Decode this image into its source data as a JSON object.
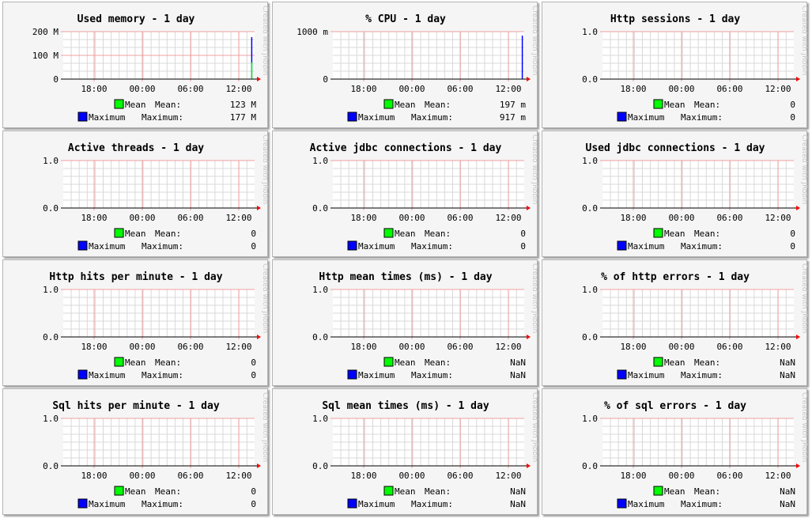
{
  "chart_data": [
    {
      "type": "line",
      "title": "Used memory - 1 day",
      "y_ticks": [
        "200 M",
        "100 M",
        "0"
      ],
      "ylim": [
        0,
        200
      ],
      "x_ticks": [
        "18:00",
        "00:00",
        "06:00",
        "12:00"
      ],
      "series": [
        {
          "name": "Mean",
          "color": "#00ff00",
          "label": "Mean:",
          "value_text": "123 M",
          "spike": {
            "x_fraction": 0.985,
            "value": 70
          }
        },
        {
          "name": "Maximum",
          "color": "#0000ff",
          "label": "Maximum:",
          "value_text": "177 M",
          "spike": {
            "x_fraction": 0.985,
            "value": 177
          }
        }
      ]
    },
    {
      "type": "line",
      "title": "% CPU - 1 day",
      "y_ticks": [
        "1000 m",
        "0"
      ],
      "ylim": [
        0,
        1000
      ],
      "x_ticks": [
        "18:00",
        "00:00",
        "06:00",
        "12:00"
      ],
      "series": [
        {
          "name": "Mean",
          "color": "#00ff00",
          "label": "Mean:",
          "value_text": "197 m",
          "spike": {
            "x_fraction": 0.99,
            "value": 10
          }
        },
        {
          "name": "Maximum",
          "color": "#0000ff",
          "label": "Maximum:",
          "value_text": "917 m",
          "spike": {
            "x_fraction": 0.99,
            "value": 917
          }
        }
      ]
    },
    {
      "type": "line",
      "title": "Http sessions - 1 day",
      "y_ticks": [
        "1.0",
        "0.0"
      ],
      "ylim": [
        0,
        1
      ],
      "x_ticks": [
        "18:00",
        "00:00",
        "06:00",
        "12:00"
      ],
      "series": [
        {
          "name": "Mean",
          "color": "#00ff00",
          "label": "Mean:",
          "value_text": "0"
        },
        {
          "name": "Maximum",
          "color": "#0000ff",
          "label": "Maximum:",
          "value_text": "0"
        }
      ]
    },
    {
      "type": "line",
      "title": "Active threads - 1 day",
      "y_ticks": [
        "1.0",
        "0.0"
      ],
      "ylim": [
        0,
        1
      ],
      "x_ticks": [
        "18:00",
        "00:00",
        "06:00",
        "12:00"
      ],
      "series": [
        {
          "name": "Mean",
          "color": "#00ff00",
          "label": "Mean:",
          "value_text": "0"
        },
        {
          "name": "Maximum",
          "color": "#0000ff",
          "label": "Maximum:",
          "value_text": "0"
        }
      ]
    },
    {
      "type": "line",
      "title": "Active jdbc connections - 1 day",
      "y_ticks": [
        "1.0",
        "0.0"
      ],
      "ylim": [
        0,
        1
      ],
      "x_ticks": [
        "18:00",
        "00:00",
        "06:00",
        "12:00"
      ],
      "series": [
        {
          "name": "Mean",
          "color": "#00ff00",
          "label": "Mean:",
          "value_text": "0"
        },
        {
          "name": "Maximum",
          "color": "#0000ff",
          "label": "Maximum:",
          "value_text": "0"
        }
      ]
    },
    {
      "type": "line",
      "title": "Used jdbc connections - 1 day",
      "y_ticks": [
        "1.0",
        "0.0"
      ],
      "ylim": [
        0,
        1
      ],
      "x_ticks": [
        "18:00",
        "00:00",
        "06:00",
        "12:00"
      ],
      "series": [
        {
          "name": "Mean",
          "color": "#00ff00",
          "label": "Mean:",
          "value_text": "0"
        },
        {
          "name": "Maximum",
          "color": "#0000ff",
          "label": "Maximum:",
          "value_text": "0"
        }
      ]
    },
    {
      "type": "line",
      "title": "Http hits per minute - 1 day",
      "y_ticks": [
        "1.0",
        "0.0"
      ],
      "ylim": [
        0,
        1
      ],
      "x_ticks": [
        "18:00",
        "00:00",
        "06:00",
        "12:00"
      ],
      "series": [
        {
          "name": "Mean",
          "color": "#00ff00",
          "label": "Mean:",
          "value_text": "0"
        },
        {
          "name": "Maximum",
          "color": "#0000ff",
          "label": "Maximum:",
          "value_text": "0"
        }
      ]
    },
    {
      "type": "line",
      "title": "Http mean times (ms) - 1 day",
      "y_ticks": [
        "1.0",
        "0.0"
      ],
      "ylim": [
        0,
        1
      ],
      "x_ticks": [
        "18:00",
        "00:00",
        "06:00",
        "12:00"
      ],
      "series": [
        {
          "name": "Mean",
          "color": "#00ff00",
          "label": "Mean:",
          "value_text": "NaN"
        },
        {
          "name": "Maximum",
          "color": "#0000ff",
          "label": "Maximum:",
          "value_text": "NaN"
        }
      ]
    },
    {
      "type": "line",
      "title": "% of http errors - 1 day",
      "y_ticks": [
        "1.0",
        "0.0"
      ],
      "ylim": [
        0,
        1
      ],
      "x_ticks": [
        "18:00",
        "00:00",
        "06:00",
        "12:00"
      ],
      "series": [
        {
          "name": "Mean",
          "color": "#00ff00",
          "label": "Mean:",
          "value_text": "NaN"
        },
        {
          "name": "Maximum",
          "color": "#0000ff",
          "label": "Maximum:",
          "value_text": "NaN"
        }
      ]
    },
    {
      "type": "line",
      "title": "Sql hits per minute - 1 day",
      "y_ticks": [
        "1.0",
        "0.0"
      ],
      "ylim": [
        0,
        1
      ],
      "x_ticks": [
        "18:00",
        "00:00",
        "06:00",
        "12:00"
      ],
      "series": [
        {
          "name": "Mean",
          "color": "#00ff00",
          "label": "Mean:",
          "value_text": "0"
        },
        {
          "name": "Maximum",
          "color": "#0000ff",
          "label": "Maximum:",
          "value_text": "0"
        }
      ]
    },
    {
      "type": "line",
      "title": "Sql mean times (ms) - 1 day",
      "y_ticks": [
        "1.0",
        "0.0"
      ],
      "ylim": [
        0,
        1
      ],
      "x_ticks": [
        "18:00",
        "00:00",
        "06:00",
        "12:00"
      ],
      "series": [
        {
          "name": "Mean",
          "color": "#00ff00",
          "label": "Mean:",
          "value_text": "NaN"
        },
        {
          "name": "Maximum",
          "color": "#0000ff",
          "label": "Maximum:",
          "value_text": "NaN"
        }
      ]
    },
    {
      "type": "line",
      "title": "% of sql errors - 1 day",
      "y_ticks": [
        "1.0",
        "0.0"
      ],
      "ylim": [
        0,
        1
      ],
      "x_ticks": [
        "18:00",
        "00:00",
        "06:00",
        "12:00"
      ],
      "series": [
        {
          "name": "Mean",
          "color": "#00ff00",
          "label": "Mean:",
          "value_text": "NaN"
        },
        {
          "name": "Maximum",
          "color": "#0000ff",
          "label": "Maximum:",
          "value_text": "NaN"
        }
      ]
    }
  ],
  "watermark": "Created with JRobin",
  "colors": {
    "grid_minor": "#d8d8d8",
    "grid_major": "#f0a0a0",
    "axis": "#000000",
    "arrow": "#ff0000",
    "panel_bg": "#f5f5f5",
    "frame": "#b4b4b4"
  }
}
